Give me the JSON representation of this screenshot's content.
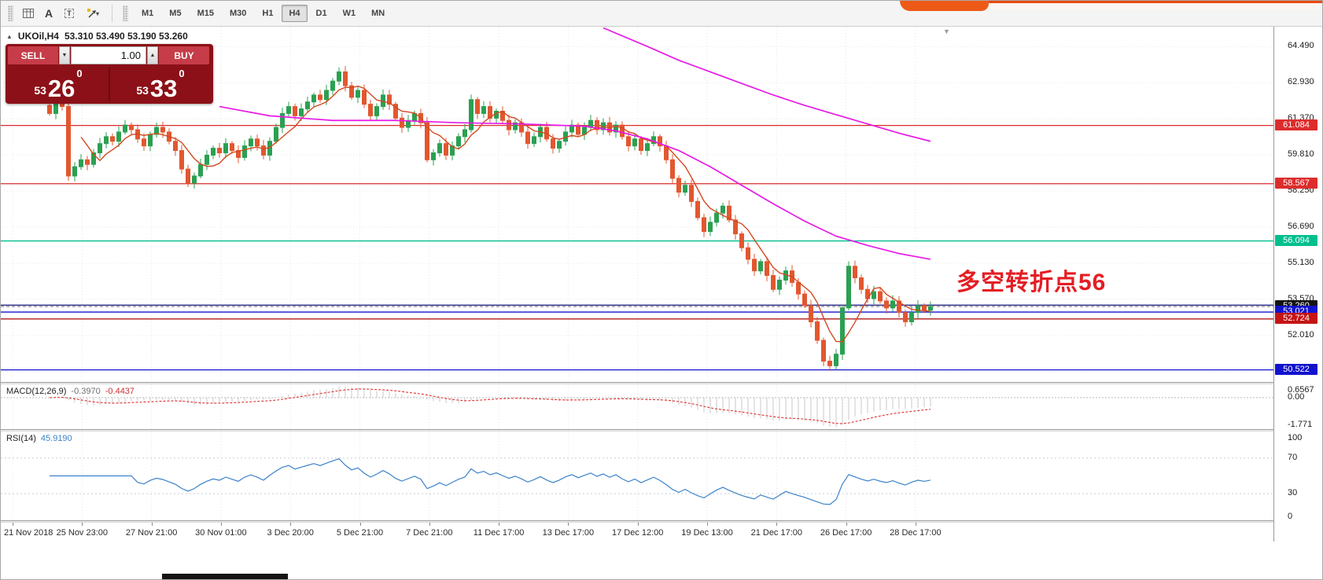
{
  "toolbar": {
    "timeframes": [
      {
        "label": "M1",
        "active": false
      },
      {
        "label": "M5",
        "active": false
      },
      {
        "label": "M15",
        "active": false
      },
      {
        "label": "M30",
        "active": false
      },
      {
        "label": "H1",
        "active": false
      },
      {
        "label": "H4",
        "active": true
      },
      {
        "label": "D1",
        "active": false
      },
      {
        "label": "W1",
        "active": false
      },
      {
        "label": "MN",
        "active": false
      }
    ]
  },
  "chart": {
    "symbol": "UKOil,H4",
    "ohlc": "53.310 53.490 53.190 53.260",
    "annotation": "多空转折点56"
  },
  "trade_panel": {
    "sell_label": "SELL",
    "buy_label": "BUY",
    "volume": "1.00",
    "sell_price": {
      "prefix": "53",
      "big": "26",
      "sup": "0"
    },
    "buy_price": {
      "prefix": "53",
      "big": "33",
      "sup": "0"
    }
  },
  "indicators": {
    "macd": {
      "name": "MACD(12,26,9)",
      "value_main": "-0.3970",
      "value_signal": "-0.4437",
      "scale_top": "0.6567",
      "scale_zero": "0.00",
      "scale_bottom": "-1.771"
    },
    "rsi": {
      "name": "RSI(14)",
      "value": "45.9190",
      "scale": [
        100,
        70,
        30,
        0
      ]
    }
  },
  "time_axis": {
    "labels": [
      "21 Nov 2018",
      "25 Nov 23:00",
      "27 Nov 21:00",
      "30 Nov 01:00",
      "3 Dec 20:00",
      "5 Dec 21:00",
      "7 Dec 21:00",
      "11 Dec 17:00",
      "13 Dec 17:00",
      "17 Dec 12:00",
      "19 Dec 13:00",
      "21 Dec 17:00",
      "26 Dec 17:00",
      "28 Dec 17:00"
    ]
  },
  "chart_data": {
    "type": "candlestick",
    "title": "UKOil,H4",
    "ohlc_display": [
      53.31,
      53.49,
      53.19,
      53.26
    ],
    "ylim": [
      50.0,
      65.35
    ],
    "price_ticks": [
      64.49,
      62.93,
      61.37,
      59.81,
      58.25,
      56.69,
      55.13,
      53.57,
      52.01,
      50.45
    ],
    "closes": [
      61.6,
      62.2,
      61.9,
      58.9,
      59.3,
      59.6,
      59.4,
      59.9,
      60.3,
      60.6,
      60.4,
      60.8,
      61.1,
      60.9,
      60.5,
      60.2,
      60.7,
      61.0,
      60.8,
      60.4,
      60.0,
      59.2,
      58.6,
      58.9,
      59.4,
      59.8,
      60.1,
      59.9,
      60.3,
      60.0,
      59.7,
      60.2,
      60.5,
      60.2,
      59.8,
      60.4,
      61.0,
      61.6,
      61.9,
      61.5,
      61.8,
      62.1,
      62.4,
      62.2,
      62.6,
      63.0,
      63.4,
      62.8,
      62.3,
      62.6,
      62.0,
      61.5,
      61.9,
      62.4,
      62.0,
      61.4,
      61.0,
      61.3,
      61.6,
      61.2,
      59.6,
      59.9,
      60.3,
      59.8,
      60.2,
      60.6,
      60.9,
      62.2,
      61.6,
      61.9,
      61.4,
      61.7,
      61.3,
      60.9,
      61.2,
      60.8,
      60.3,
      60.6,
      61.0,
      60.5,
      60.1,
      60.4,
      60.8,
      61.1,
      60.7,
      61.0,
      61.3,
      60.9,
      61.2,
      60.8,
      61.1,
      60.6,
      60.2,
      60.5,
      60.0,
      60.3,
      60.6,
      60.2,
      59.6,
      58.8,
      58.2,
      58.5,
      57.8,
      57.1,
      56.5,
      56.9,
      57.3,
      57.6,
      57.0,
      56.4,
      55.8,
      55.3,
      54.8,
      55.2,
      54.6,
      54.0,
      54.4,
      54.8,
      54.3,
      53.8,
      53.3,
      52.6,
      51.8,
      50.9,
      50.7,
      51.2,
      53.2,
      55.0,
      54.5,
      54.0,
      53.6,
      53.9,
      53.5,
      53.2,
      53.5,
      53.0,
      52.6,
      53.0,
      53.3,
      53.1,
      53.26
    ],
    "levels": [
      {
        "price": 61.084,
        "label": "61.084",
        "line": "#dd2c2c",
        "badge": "#dd2c2c",
        "dash": false
      },
      {
        "price": 58.567,
        "label": "58.567",
        "line": "#dd2c2c",
        "badge": "#dd2c2c",
        "dash": false
      },
      {
        "price": 56.094,
        "label": "56.094",
        "line": "#00bf8f",
        "badge": "#00bf8f",
        "dash": false
      },
      {
        "price": 53.32,
        "label": "",
        "line": "#15157e",
        "badge": "",
        "dash": false
      },
      {
        "price": 53.26,
        "label": "53.260",
        "line": "#8a8a8a",
        "badge": "#141414",
        "dash": true
      },
      {
        "price": 53.021,
        "label": "53.021",
        "line": "#1212cf",
        "badge": "#1212cf",
        "dash": false
      },
      {
        "price": 52.724,
        "label": "52.724",
        "line": "#b01818",
        "badge": "#c51414",
        "dash": false
      },
      {
        "price": 50.522,
        "label": "50.522",
        "line": "#1212cf",
        "badge": "#1212cf",
        "dash": false
      }
    ],
    "ma_fast": {
      "period": 6,
      "color": "#d2491f"
    },
    "ma_mid": {
      "color": "#e61ae6",
      "points": [
        [
          27,
          61.9
        ],
        [
          35,
          61.5
        ],
        [
          45,
          61.3
        ],
        [
          55,
          61.3
        ],
        [
          65,
          61.2
        ],
        [
          75,
          61.15
        ],
        [
          85,
          61.05
        ],
        [
          90,
          60.85
        ],
        [
          95,
          60.5
        ],
        [
          100,
          60.0
        ],
        [
          105,
          59.3
        ],
        [
          110,
          58.5
        ],
        [
          115,
          57.7
        ],
        [
          120,
          56.95
        ],
        [
          125,
          56.3
        ],
        [
          130,
          55.9
        ],
        [
          135,
          55.55
        ],
        [
          140,
          55.3
        ]
      ]
    },
    "ma_slow": {
      "color": "#e61ae6",
      "points": [
        [
          88,
          65.3
        ],
        [
          95,
          64.5
        ],
        [
          100,
          63.9
        ],
        [
          105,
          63.4
        ],
        [
          110,
          62.9
        ],
        [
          115,
          62.4
        ],
        [
          120,
          61.95
        ],
        [
          125,
          61.55
        ],
        [
          130,
          61.15
        ],
        [
          135,
          60.75
        ],
        [
          140,
          60.4
        ]
      ]
    },
    "colors": {
      "up": "#2aa052",
      "down": "#e2572f",
      "grid": "#e7e7e7",
      "rsi": "#3c82c8",
      "macd_signal": "#e03131",
      "macd_hist": "#c9c9c9"
    },
    "macd_range": [
      0.85,
      -2.0
    ],
    "rsi_levels": [
      70,
      30
    ]
  }
}
